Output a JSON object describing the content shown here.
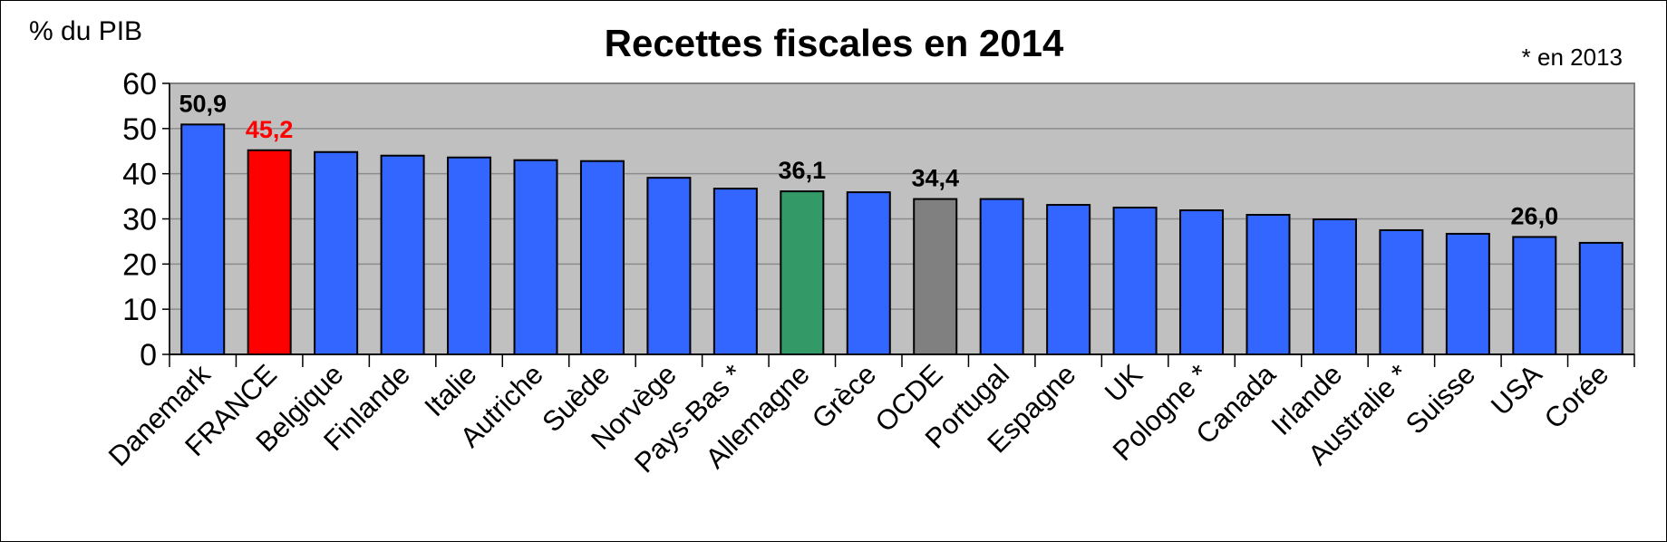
{
  "chart_data": {
    "type": "bar",
    "title": "Recettes fiscales en 2014",
    "ylabel": "% du PIB",
    "note": "* en 2013",
    "ylim": [
      0,
      60
    ],
    "yticks": [
      0,
      10,
      20,
      30,
      40,
      50,
      60
    ],
    "grid": true,
    "categories": [
      "Danemark",
      "FRANCE",
      "Belgique",
      "Finlande",
      "Italie",
      "Autriche",
      "Suède",
      "Norvège",
      "Pays-Bas *",
      "Allemagne",
      "Grèce",
      "OCDE",
      "Portugal",
      "Espagne",
      "UK",
      "Pologne *",
      "Canada",
      "Irlande",
      "Australie *",
      "Suisse",
      "USA",
      "Corée"
    ],
    "values": [
      50.9,
      45.2,
      44.8,
      44.0,
      43.6,
      43.0,
      42.8,
      39.1,
      36.7,
      36.1,
      35.9,
      34.4,
      34.4,
      33.1,
      32.5,
      31.9,
      30.9,
      29.9,
      27.5,
      26.7,
      26.0,
      24.7
    ],
    "colors": {
      "default": "#3366ff",
      "FRANCE": "#ff0000",
      "Allemagne": "#339966",
      "OCDE": "#808080",
      "plot_bg": "#c0c0c0",
      "grid": "#8c8c8c"
    },
    "data_labels": [
      {
        "category": "Danemark",
        "text": "50,9",
        "color": "#000000"
      },
      {
        "category": "FRANCE",
        "text": "45,2",
        "color": "#ff0000"
      },
      {
        "category": "Allemagne",
        "text": "36,1",
        "color": "#000000"
      },
      {
        "category": "OCDE",
        "text": "34,4",
        "color": "#000000"
      },
      {
        "category": "USA",
        "text": "26,0",
        "color": "#000000"
      }
    ]
  }
}
